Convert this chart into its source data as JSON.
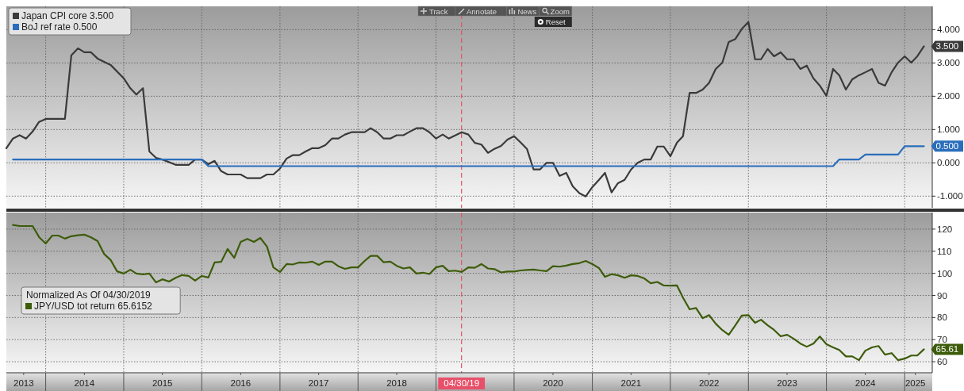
{
  "chart_data": [
    {
      "type": "line",
      "xlim": [
        "2013-07-01",
        "2025-05-10"
      ],
      "xticks": [
        {
          "value": "2014-01-01",
          "label": null
        },
        {
          "value": "2015-01-01",
          "label": null
        },
        {
          "value": "2016-01-01",
          "label": null
        },
        {
          "value": "2017-01-01",
          "label": null
        },
        {
          "value": "2018-01-01",
          "label": null
        },
        {
          "value": "2019-01-01",
          "label": null
        },
        {
          "value": "2020-01-01",
          "label": null
        },
        {
          "value": "2021-01-01",
          "label": null
        },
        {
          "value": "2022-01-01",
          "label": null
        },
        {
          "value": "2023-01-01",
          "label": null
        },
        {
          "value": "2024-01-01",
          "label": null
        },
        {
          "value": "2025-01-01",
          "label": null
        }
      ],
      "ylim": [
        -1.35,
        4.7
      ],
      "yticks": [
        {
          "value": -1,
          "label": "-1.000"
        },
        {
          "value": 0,
          "label": "0.000"
        },
        {
          "value": 1,
          "label": "1.000"
        },
        {
          "value": 2,
          "label": "2.000"
        },
        {
          "value": 3,
          "label": "3.000"
        },
        {
          "value": 4,
          "label": "4.000"
        }
      ],
      "tick_labels": "y",
      "grid": true,
      "legend": "top left",
      "series": [
        {
          "name": "Japan CPI core 3.500",
          "color": "#3a3a3a",
          "x": [
            "2013-07",
            "2013-08",
            "2013-09",
            "2013-10",
            "2013-11",
            "2013-12",
            "2014-01",
            "2014-04",
            "2014-05",
            "2014-06",
            "2014-07",
            "2014-08",
            "2014-09",
            "2014-11",
            "2015-01",
            "2015-02",
            "2015-03",
            "2015-04",
            "2015-05",
            "2015-06",
            "2015-07",
            "2015-09",
            "2015-11",
            "2015-12",
            "2016-01",
            "2016-02",
            "2016-03",
            "2016-04",
            "2016-05",
            "2016-07",
            "2016-08",
            "2016-10",
            "2016-11",
            "2016-12",
            "2017-01",
            "2017-02",
            "2017-03",
            "2017-04",
            "2017-05",
            "2017-06",
            "2017-07",
            "2017-08",
            "2017-09",
            "2017-10",
            "2017-11",
            "2017-12",
            "2018-02",
            "2018-03",
            "2018-04",
            "2018-05",
            "2018-06",
            "2018-07",
            "2018-08",
            "2018-09",
            "2018-10",
            "2018-11",
            "2018-12",
            "2019-01",
            "2019-02",
            "2019-03",
            "2019-05",
            "2019-06",
            "2019-07",
            "2019-08",
            "2019-09",
            "2019-10",
            "2019-11",
            "2019-12",
            "2020-01",
            "2020-02",
            "2020-03",
            "2020-04",
            "2020-05",
            "2020-06",
            "2020-07",
            "2020-08",
            "2020-09",
            "2020-10",
            "2020-11",
            "2020-12",
            "2021-01",
            "2021-02",
            "2021-03",
            "2021-04",
            "2021-05",
            "2021-06",
            "2021-07",
            "2021-08",
            "2021-09",
            "2021-10",
            "2021-11",
            "2021-12",
            "2022-01",
            "2022-02",
            "2022-03",
            "2022-04",
            "2022-05",
            "2022-06",
            "2022-07",
            "2022-08",
            "2022-09",
            "2022-10",
            "2022-11",
            "2022-12",
            "2023-01",
            "2023-02",
            "2023-03",
            "2023-04",
            "2023-05",
            "2023-06",
            "2023-07",
            "2023-08",
            "2023-09",
            "2023-10",
            "2023-11",
            "2023-12",
            "2024-01",
            "2024-02",
            "2024-03",
            "2024-04",
            "2024-05",
            "2024-06",
            "2024-07",
            "2024-08",
            "2024-09",
            "2024-10",
            "2024-11",
            "2024-12",
            "2025-01",
            "2025-02",
            "2025-03",
            "2025-04"
          ],
          "values": [
            0.44,
            0.73,
            0.83,
            0.73,
            0.94,
            1.23,
            1.32,
            1.32,
            3.23,
            3.44,
            3.32,
            3.32,
            3.13,
            2.94,
            2.54,
            2.24,
            2.05,
            2.24,
            0.34,
            0.15,
            0.1,
            -0.06,
            -0.06,
            0.1,
            0.1,
            -0.04,
            0.06,
            -0.25,
            -0.35,
            -0.35,
            -0.46,
            -0.46,
            -0.35,
            -0.35,
            -0.17,
            0.13,
            0.23,
            0.23,
            0.34,
            0.44,
            0.44,
            0.53,
            0.73,
            0.73,
            0.85,
            0.92,
            0.92,
            1.04,
            0.92,
            0.73,
            0.73,
            0.83,
            0.83,
            0.94,
            1.04,
            1.04,
            0.92,
            0.73,
            0.85,
            0.73,
            0.92,
            0.85,
            0.6,
            0.55,
            0.3,
            0.42,
            0.51,
            0.7,
            0.8,
            0.61,
            0.42,
            -0.2,
            -0.2,
            0,
            0,
            -0.39,
            -0.3,
            -0.7,
            -0.91,
            -1.01,
            -0.73,
            -0.51,
            -0.3,
            -0.89,
            -0.61,
            -0.51,
            -0.2,
            0,
            0.1,
            0.1,
            0.49,
            0.49,
            0.2,
            0.61,
            0.8,
            2.1,
            2.1,
            2.2,
            2.4,
            2.82,
            3.01,
            3.63,
            3.72,
            4.02,
            4.23,
            3.11,
            3.11,
            3.42,
            3.2,
            3.32,
            3.11,
            3.11,
            2.82,
            2.92,
            2.54,
            2.32,
            2.01,
            2.82,
            2.63,
            2.2,
            2.51,
            2.63,
            2.72,
            2.82,
            2.4,
            2.32,
            2.72,
            3.01,
            3.2,
            3.01,
            3.2,
            3.5
          ]
        },
        {
          "name": "BoJ ref rate 0.500",
          "color": "#2a6ebb",
          "x": [
            "2013-08",
            "2016-01",
            "2016-02",
            "2024-02",
            "2024-03",
            "2024-06",
            "2024-07",
            "2024-12",
            "2025-01",
            "2025-04"
          ],
          "values": [
            0.1,
            0.1,
            -0.1,
            -0.1,
            0.1,
            0.1,
            0.25,
            0.25,
            0.5,
            0.5
          ]
        }
      ],
      "ref_lines": [
        {
          "axis": "x",
          "value": "2019-04-30",
          "color": "#e8506a",
          "line_style": "dashed"
        }
      ],
      "annotations": [
        "Track",
        "Annotate",
        "News",
        "Zoom",
        "Reset",
        {
          "text": "3.500",
          "x": "2025-04",
          "y": 3.5
        },
        {
          "text": "0.500",
          "x": "2025-04",
          "y": 0.5
        }
      ]
    },
    {
      "type": "line",
      "xlim": [
        "2013-07-01",
        "2025-05-10"
      ],
      "xticks": [
        {
          "value": "2014-01-01",
          "label": null
        },
        {
          "value": "2015-01-01",
          "label": null
        },
        {
          "value": "2016-01-01",
          "label": null
        },
        {
          "value": "2017-01-01",
          "label": null
        },
        {
          "value": "2018-01-01",
          "label": null
        },
        {
          "value": "2019-01-01",
          "label": null
        },
        {
          "value": "2020-01-01",
          "label": null
        },
        {
          "value": "2021-01-01",
          "label": null
        },
        {
          "value": "2022-01-01",
          "label": null
        },
        {
          "value": "2023-01-01",
          "label": null
        },
        {
          "value": "2024-01-01",
          "label": null
        },
        {
          "value": "2025-01-01",
          "label": null
        },
        {
          "value": "2013-09-20",
          "label": "2013"
        },
        {
          "value": "2014-07-01",
          "label": "2014"
        },
        {
          "value": "2015-07-01",
          "label": "2015"
        },
        {
          "value": "2016-07-01",
          "label": "2016"
        },
        {
          "value": "2017-07-01",
          "label": "2017"
        },
        {
          "value": "2018-07-01",
          "label": "2018"
        },
        {
          "value": "2020-07-01",
          "label": "2020"
        },
        {
          "value": "2021-07-01",
          "label": "2021"
        },
        {
          "value": "2022-07-01",
          "label": "2022"
        },
        {
          "value": "2023-07-01",
          "label": "2023"
        },
        {
          "value": "2024-07-01",
          "label": "2024"
        },
        {
          "value": "2025-02-20",
          "label": "2025"
        }
      ],
      "ylim": [
        55,
        127.5
      ],
      "yticks": [
        60,
        70,
        80,
        90,
        100,
        110,
        120
      ],
      "grid": true,
      "legend": "left",
      "legend_title": "Normalized As Of 04/30/2019",
      "series": [
        {
          "name": "JPY/USD tot return 65.6152",
          "color": "#3d5c0a",
          "x": [
            "2013-08",
            "2013-09",
            "2013-10",
            "2013-11",
            "2013-12",
            "2014-01",
            "2014-02",
            "2014-03",
            "2014-04",
            "2014-05",
            "2014-06",
            "2014-07",
            "2014-08",
            "2014-09",
            "2014-10",
            "2014-11",
            "2014-12",
            "2015-01",
            "2015-02",
            "2015-03",
            "2015-04",
            "2015-05",
            "2015-06",
            "2015-07",
            "2015-08",
            "2015-09",
            "2015-10",
            "2015-11",
            "2015-12",
            "2016-01",
            "2016-02",
            "2016-03",
            "2016-04",
            "2016-05",
            "2016-06",
            "2016-07",
            "2016-08",
            "2016-09",
            "2016-10",
            "2016-11",
            "2016-12",
            "2017-01",
            "2017-02",
            "2017-03",
            "2017-04",
            "2017-05",
            "2017-06",
            "2017-07",
            "2017-08",
            "2017-09",
            "2017-10",
            "2017-11",
            "2017-12",
            "2018-01",
            "2018-02",
            "2018-03",
            "2018-04",
            "2018-05",
            "2018-06",
            "2018-07",
            "2018-08",
            "2018-09",
            "2018-10",
            "2018-11",
            "2018-12",
            "2019-01",
            "2019-02",
            "2019-03",
            "2019-04",
            "2019-05",
            "2019-06",
            "2019-07",
            "2019-08",
            "2019-09",
            "2019-10",
            "2019-11",
            "2019-12",
            "2020-01",
            "2020-02",
            "2020-03",
            "2020-04",
            "2020-05",
            "2020-06",
            "2020-07",
            "2020-08",
            "2020-09",
            "2020-10",
            "2020-11",
            "2020-12",
            "2021-01",
            "2021-02",
            "2021-03",
            "2021-04",
            "2021-05",
            "2021-06",
            "2021-07",
            "2021-08",
            "2021-09",
            "2021-10",
            "2021-11",
            "2021-12",
            "2022-01",
            "2022-02",
            "2022-03",
            "2022-04",
            "2022-05",
            "2022-06",
            "2022-07",
            "2022-08",
            "2022-09",
            "2022-10",
            "2022-11",
            "2022-12",
            "2023-01",
            "2023-02",
            "2023-03",
            "2023-04",
            "2023-05",
            "2023-06",
            "2023-07",
            "2023-08",
            "2023-09",
            "2023-10",
            "2023-11",
            "2023-12",
            "2024-01",
            "2024-02",
            "2024-03",
            "2024-04",
            "2024-05",
            "2024-06",
            "2024-07",
            "2024-08",
            "2024-09",
            "2024-10",
            "2024-11",
            "2024-12",
            "2025-01",
            "2025-02",
            "2025-03",
            "2025-04"
          ],
          "values": [
            121.9,
            121.4,
            121.4,
            121.4,
            116.4,
            113.5,
            117.1,
            117.1,
            115.7,
            116.8,
            117.2,
            117.5,
            116.3,
            114.6,
            108.8,
            106,
            100.9,
            99.9,
            101.6,
            99.9,
            99.5,
            99.9,
            95.9,
            97.3,
            96.3,
            98,
            99.2,
            98.8,
            96.7,
            98.8,
            98.1,
            104.9,
            105.2,
            111,
            107,
            114.2,
            115.6,
            114.2,
            116,
            112.1,
            102.7,
            100.6,
            104.2,
            104,
            104.9,
            104.8,
            105.3,
            103.8,
            105.3,
            105.3,
            103.2,
            102,
            102.7,
            102.7,
            105.6,
            107.9,
            107.9,
            105,
            105.3,
            103.4,
            102.2,
            102.7,
            99.9,
            100.3,
            99.7,
            102.7,
            103.4,
            101,
            101.2,
            100.6,
            102.7,
            102.5,
            104.2,
            102.2,
            101.9,
            100.4,
            100.8,
            100.8,
            101.3,
            101.5,
            101.7,
            101.3,
            101,
            103.2,
            103,
            103.5,
            104.2,
            104.6,
            105.6,
            104.2,
            102.4,
            98.4,
            99.6,
            99.1,
            98,
            99.1,
            98.8,
            97.7,
            95.5,
            96.1,
            94.5,
            94.4,
            94.5,
            89,
            83.7,
            84.3,
            79.7,
            81.1,
            77.2,
            74.3,
            72.2,
            76.5,
            80.9,
            81.1,
            77.6,
            79,
            76.5,
            74.4,
            71.5,
            72.2,
            70.4,
            68.2,
            66.8,
            68.2,
            71.4,
            67.9,
            66.5,
            65.3,
            62.4,
            62.4,
            60.7,
            65,
            66.5,
            67.1,
            63.2,
            63.9,
            60.7,
            61.4,
            62.8,
            62.8,
            65.6152
          ]
        }
      ],
      "ref_lines": [
        {
          "axis": "x",
          "value": "2019-04-30",
          "label": "04/30/19",
          "color": "#e8506a",
          "line_style": "dashed"
        }
      ],
      "annotations": [
        {
          "text": "65.61",
          "x": "2025-04",
          "y": 65.6152
        }
      ]
    }
  ]
}
